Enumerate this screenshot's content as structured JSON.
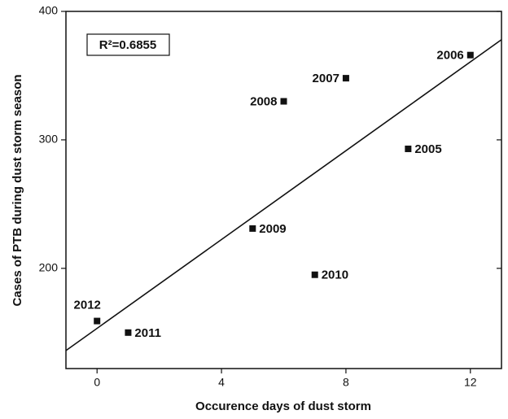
{
  "chart_data": {
    "type": "scatter",
    "x_label": "Occurence days of dust storm",
    "y_label": "Cases of PTB during dust storm season",
    "annotation": "R²=0.6855",
    "labels": [
      "2005",
      "2006",
      "2007",
      "2008",
      "2009",
      "2010",
      "2011",
      "2012"
    ],
    "x": [
      10,
      12,
      8,
      6,
      5,
      7,
      1,
      0
    ],
    "values": [
      293,
      366,
      348,
      330,
      231,
      195,
      150,
      159
    ],
    "color": "#111111",
    "fit": {
      "x": [
        -1,
        13
      ],
      "y": [
        136,
        378
      ]
    },
    "xlim": [
      -1,
      13
    ],
    "xticks": [
      0,
      4,
      8,
      12
    ],
    "ylim": [
      122,
      400
    ],
    "yticks": [
      200,
      300,
      400
    ]
  }
}
